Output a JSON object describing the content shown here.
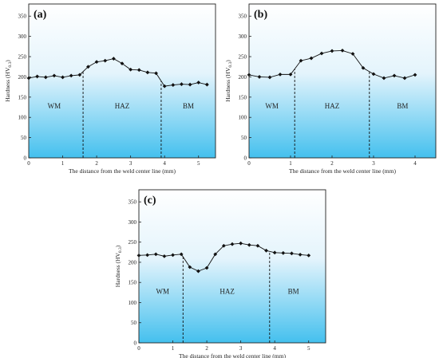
{
  "chart_data": [
    {
      "type": "line",
      "panel_label": "(a)",
      "xlabel": "The distance from the weld center line (mm)",
      "ylabel": "Hardness (HV",
      "ylabel_sub": "0.3",
      "ylabel_close": ")",
      "xlim": [
        0,
        5.5
      ],
      "ylim": [
        0,
        380
      ],
      "xticks": [
        "0",
        "1",
        "2",
        "3",
        "4",
        "5"
      ],
      "yticks": [
        "0",
        "50",
        "100",
        "150",
        "200",
        "250",
        "300",
        "350"
      ],
      "boundaries": [
        1.6,
        3.9
      ],
      "regions": [
        {
          "label": "WM",
          "x": 0.75,
          "y": 122
        },
        {
          "label": "HAZ",
          "x": 2.75,
          "y": 122
        },
        {
          "label": "BM",
          "x": 4.7,
          "y": 122
        }
      ],
      "series": [
        {
          "x": [
            0,
            0.25,
            0.5,
            0.75,
            1.0,
            1.25,
            1.5,
            1.75,
            2.0,
            2.25,
            2.5,
            2.75,
            3.0,
            3.25,
            3.5,
            3.75,
            4.0,
            4.25,
            4.5,
            4.75,
            5.0,
            5.25
          ],
          "y": [
            197,
            201,
            199,
            203,
            199,
            203,
            205,
            225,
            237,
            240,
            245,
            233,
            218,
            217,
            211,
            209,
            177,
            180,
            182,
            181,
            186,
            181
          ]
        }
      ]
    },
    {
      "type": "line",
      "panel_label": "(b)",
      "xlabel": "The distance from the weld center line (mm)",
      "ylabel": "Hardness (HV",
      "ylabel_sub": "0.3",
      "ylabel_close": ")",
      "xlim": [
        0,
        4.5
      ],
      "ylim": [
        0,
        380
      ],
      "xticks": [
        "0",
        "1",
        "2",
        "3",
        "4"
      ],
      "yticks": [
        "0",
        "50",
        "100",
        "150",
        "200",
        "250",
        "300",
        "350"
      ],
      "boundaries": [
        1.1,
        2.9
      ],
      "regions": [
        {
          "label": "WM",
          "x": 0.55,
          "y": 122
        },
        {
          "label": "HAZ",
          "x": 2.0,
          "y": 122
        },
        {
          "label": "BM",
          "x": 3.7,
          "y": 122
        }
      ],
      "series": [
        {
          "x": [
            0,
            0.25,
            0.5,
            0.75,
            1.0,
            1.25,
            1.5,
            1.75,
            2.0,
            2.25,
            2.5,
            2.75,
            3.0,
            3.25,
            3.5,
            3.75,
            4.0
          ],
          "y": [
            205,
            200,
            199,
            206,
            206,
            240,
            246,
            258,
            264,
            265,
            257,
            222,
            207,
            197,
            203,
            197,
            205
          ]
        }
      ]
    },
    {
      "type": "line",
      "panel_label": "(c)",
      "xlabel": "The distance from the weld center line (mm)",
      "ylabel": "Hardness (HV",
      "ylabel_sub": "0.3",
      "ylabel_close": ")",
      "xlim": [
        0,
        5.5
      ],
      "ylim": [
        0,
        380
      ],
      "xticks": [
        "0",
        "1",
        "2",
        "3",
        "4",
        "5"
      ],
      "yticks": [
        "0",
        "50",
        "100",
        "150",
        "200",
        "250",
        "300",
        "350"
      ],
      "boundaries": [
        1.3,
        3.85
      ],
      "regions": [
        {
          "label": "WM",
          "x": 0.7,
          "y": 122
        },
        {
          "label": "HAZ",
          "x": 2.6,
          "y": 122
        },
        {
          "label": "BM",
          "x": 4.55,
          "y": 122
        }
      ],
      "series": [
        {
          "x": [
            0,
            0.25,
            0.5,
            0.75,
            1.0,
            1.25,
            1.5,
            1.75,
            2.0,
            2.25,
            2.5,
            2.75,
            3.0,
            3.25,
            3.5,
            3.75,
            4.0,
            4.25,
            4.5,
            4.75,
            5.0
          ],
          "y": [
            217,
            218,
            220,
            215,
            218,
            220,
            188,
            178,
            186,
            220,
            241,
            245,
            247,
            243,
            241,
            229,
            224,
            223,
            222,
            219,
            217
          ]
        }
      ]
    }
  ]
}
